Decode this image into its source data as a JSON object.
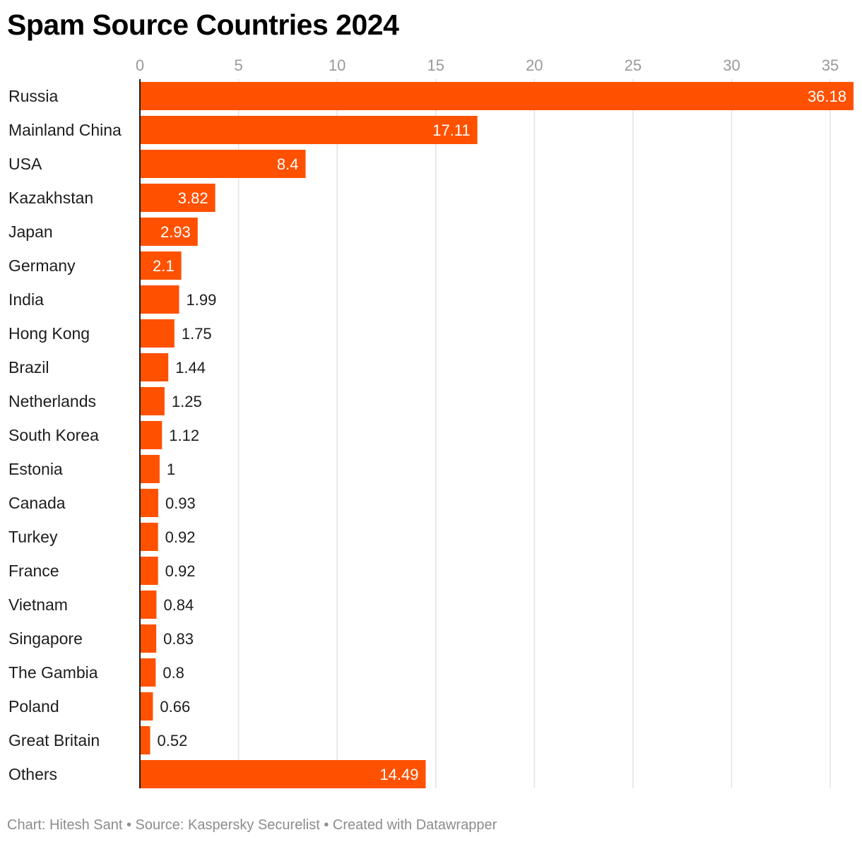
{
  "title": "Spam Source Countries 2024",
  "footer": {
    "credit": "Chart: Hitesh Sant",
    "separator": " • ",
    "source": "Source: Kaspersky Securelist",
    "created_with": "Created with Datawrapper"
  },
  "colors": {
    "bar": "#ff5100",
    "gridline": "#e2e2e2",
    "axis_line": "#1d1d1d",
    "value_inside": "#ffffff",
    "value_outside": "#1d1d1d"
  },
  "chart_data": {
    "type": "bar",
    "orientation": "horizontal",
    "title": "Spam Source Countries 2024",
    "xlabel": "",
    "ylabel": "",
    "xlim": [
      0,
      36.18
    ],
    "x_ticks": [
      0,
      5,
      10,
      15,
      20,
      25,
      30,
      35
    ],
    "grid": true,
    "tick_position": "top",
    "categories": [
      "Russia",
      "Mainland China",
      "USA",
      "Kazakhstan",
      "Japan",
      "Germany",
      "India",
      "Hong Kong",
      "Brazil",
      "Netherlands",
      "South Korea",
      "Estonia",
      "Canada",
      "Turkey",
      "France",
      "Vietnam",
      "Singapore",
      "The Gambia",
      "Poland",
      "Great Britain",
      "Others"
    ],
    "values": [
      36.18,
      17.11,
      8.4,
      3.82,
      2.93,
      2.1,
      1.99,
      1.75,
      1.44,
      1.25,
      1.12,
      1,
      0.93,
      0.92,
      0.92,
      0.84,
      0.83,
      0.8,
      0.66,
      0.52,
      14.49
    ],
    "value_labels": [
      "36.18",
      "17.11",
      "8.4",
      "3.82",
      "2.93",
      "2.1",
      "1.99",
      "1.75",
      "1.44",
      "1.25",
      "1.12",
      "1",
      "0.93",
      "0.92",
      "0.92",
      "0.84",
      "0.83",
      "0.8",
      "0.66",
      "0.52",
      "14.49"
    ]
  }
}
